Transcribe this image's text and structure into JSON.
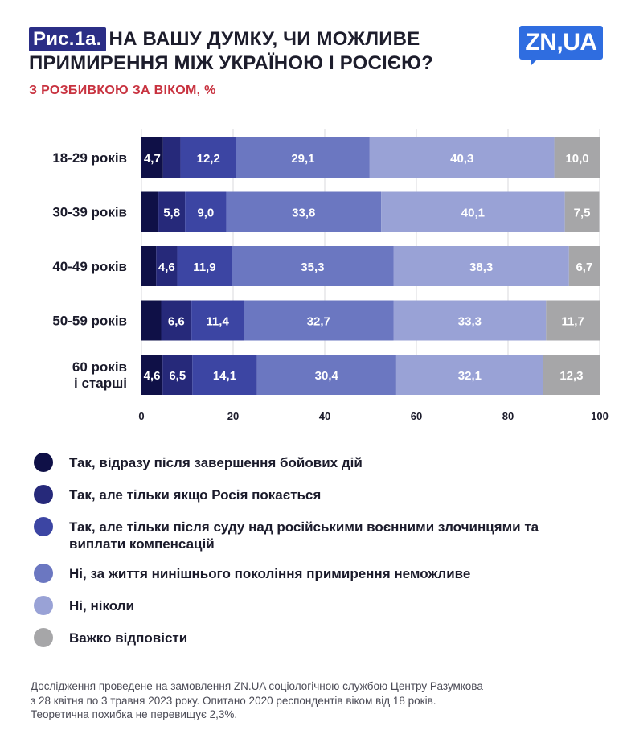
{
  "header": {
    "fig_label": "Рис.1а.",
    "title_line1": "НА ВАШУ ДУМКУ, ЧИ МОЖЛИВЕ",
    "title_line2": "ПРИМИРЕННЯ МІЖ УКРАЇНОЮ І РОСІЄЮ?",
    "subtitle": "З РОЗБИВКОЮ ЗА ВІКОМ, %",
    "logo": "ZN,UA"
  },
  "chart_data": {
    "type": "bar",
    "orientation": "horizontal",
    "stacked": true,
    "categories": [
      "18-29 років",
      "30-39 років",
      "40-49 років",
      "50-59 років",
      "60 років\nі старші"
    ],
    "series": [
      {
        "name": "Так, відразу після завершення бойових дій",
        "color": "#0f1047",
        "values": [
          4.7,
          3.7,
          3.2,
          4.3,
          4.6
        ],
        "labels": [
          "4,7",
          "",
          "",
          "",
          "4,6"
        ]
      },
      {
        "name": "Так, але тільки якщо Росія покається",
        "color": "#26297a",
        "values": [
          3.8,
          5.8,
          4.6,
          6.6,
          6.5
        ],
        "labels": [
          "",
          "5,8",
          "4,6",
          "6,6",
          "6,5"
        ]
      },
      {
        "name": "Так, але тільки після суду над російськими воєнними злочинцями та виплати компенсацій",
        "color": "#3c45a3",
        "values": [
          12.2,
          9.0,
          11.9,
          11.4,
          14.1
        ],
        "labels": [
          "12,2",
          "9,0",
          "11,9",
          "11,4",
          "14,1"
        ]
      },
      {
        "name": "Ні, за життя нинішнього покоління примирення неможливе",
        "color": "#6b77c1",
        "values": [
          29.1,
          33.8,
          35.3,
          32.7,
          30.4
        ],
        "labels": [
          "29,1",
          "33,8",
          "35,3",
          "32,7",
          "30,4"
        ]
      },
      {
        "name": "Ні, ніколи",
        "color": "#99a2d6",
        "values": [
          40.3,
          40.1,
          38.3,
          33.3,
          32.1
        ],
        "labels": [
          "40,3",
          "40,1",
          "38,3",
          "33,3",
          "32,1"
        ]
      },
      {
        "name": "Важко відповісти",
        "color": "#a6a6a8",
        "values": [
          10.0,
          7.5,
          6.7,
          11.7,
          12.3
        ],
        "labels": [
          "10,0",
          "7,5",
          "6,7",
          "11,7",
          "12,3"
        ]
      }
    ],
    "xlim": [
      0,
      100
    ],
    "xticks": [
      "0",
      "20",
      "40",
      "60",
      "80",
      "100"
    ],
    "grid": true,
    "legend_position": "bottom"
  },
  "legend": [
    {
      "text": "Так, відразу після завершення бойових дій",
      "color": "#0f1047"
    },
    {
      "text": "Так, але тільки якщо Росія покається",
      "color": "#26297a"
    },
    {
      "text": "Так, але тільки після суду над російськими воєнними злочинцями та виплати компенсацій",
      "color": "#3c45a3"
    },
    {
      "text": "Ні, за життя нинішнього покоління примирення неможливе",
      "color": "#6b77c1"
    },
    {
      "text": "Ні, ніколи",
      "color": "#99a2d6"
    },
    {
      "text": "Важко відповісти",
      "color": "#a6a6a8"
    }
  ],
  "footnote": {
    "line1": "Дослідження проведене на замовлення ZN.UA соціологічною службою Центру Разумкова",
    "line2": "з 28 квітня по 3 травня 2023 року. Опитано 2020 респондентів віком від 18 років.",
    "line3": "Теоретична похибка не перевищує 2,3%."
  }
}
